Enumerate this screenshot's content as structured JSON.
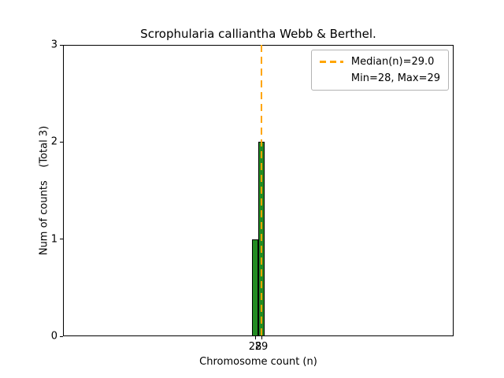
{
  "chart_data": {
    "type": "bar",
    "title": "Scrophularia calliantha Webb & Berthel.",
    "xlabel": "Chromosome count (n)",
    "ylabel": "Num of counts    (Total 3)",
    "total_counts": 3,
    "categories": [
      28,
      29
    ],
    "values": [
      1,
      2
    ],
    "bar_width": 1,
    "xticks": [
      28,
      29
    ],
    "yticks": [
      0,
      1,
      2,
      3
    ],
    "xlim": [
      -2.5,
      59.5
    ],
    "ylim": [
      0,
      3
    ],
    "median": 29.0,
    "min": 28,
    "max": 29,
    "legend": [
      "Median(n)=29.0",
      "Min=28, Max=29"
    ],
    "legend_position": "upper right",
    "grid": false,
    "colors": {
      "bar_fill": "#228B22",
      "bar_edge": "#000000",
      "median_line": "#FFA500",
      "axis": "#000000"
    }
  }
}
